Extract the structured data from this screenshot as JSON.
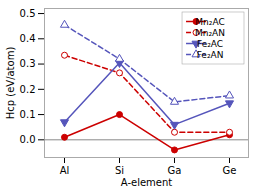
{
  "chart_data": {
    "type": "line",
    "xlabel": "A-element",
    "ylabel": "Hcp (eV/atom)",
    "categories": [
      "Al",
      "Si",
      "Ga",
      "Ge"
    ],
    "series": [
      {
        "name": "Mn₂AC",
        "color": "#cc0000",
        "line_style": "solid",
        "marker": "circle",
        "values": [
          0.01,
          0.1,
          -0.04,
          0.02
        ]
      },
      {
        "name": "Mn₂AN",
        "color": "#cc0000",
        "line_style": "dashed",
        "marker": "circle-open",
        "values": [
          0.335,
          0.265,
          0.03,
          0.03
        ]
      },
      {
        "name": "Fe₂AC",
        "color": "#5555bb",
        "line_style": "solid",
        "marker": "triangle-down",
        "values": [
          0.07,
          0.305,
          0.06,
          0.145
        ]
      },
      {
        "name": "Fe₂AN",
        "color": "#5555bb",
        "line_style": "dashed",
        "marker": "triangle-up-open",
        "values": [
          0.455,
          0.32,
          0.15,
          0.175
        ]
      }
    ],
    "ylim": [
      -0.07,
      0.52
    ],
    "yticks": [
      {
        "value": 0.0,
        "label": "0.0"
      },
      0.1,
      0.2,
      0.3,
      0.4,
      0.5
    ],
    "hline": 0.0,
    "legend": "upper right"
  }
}
